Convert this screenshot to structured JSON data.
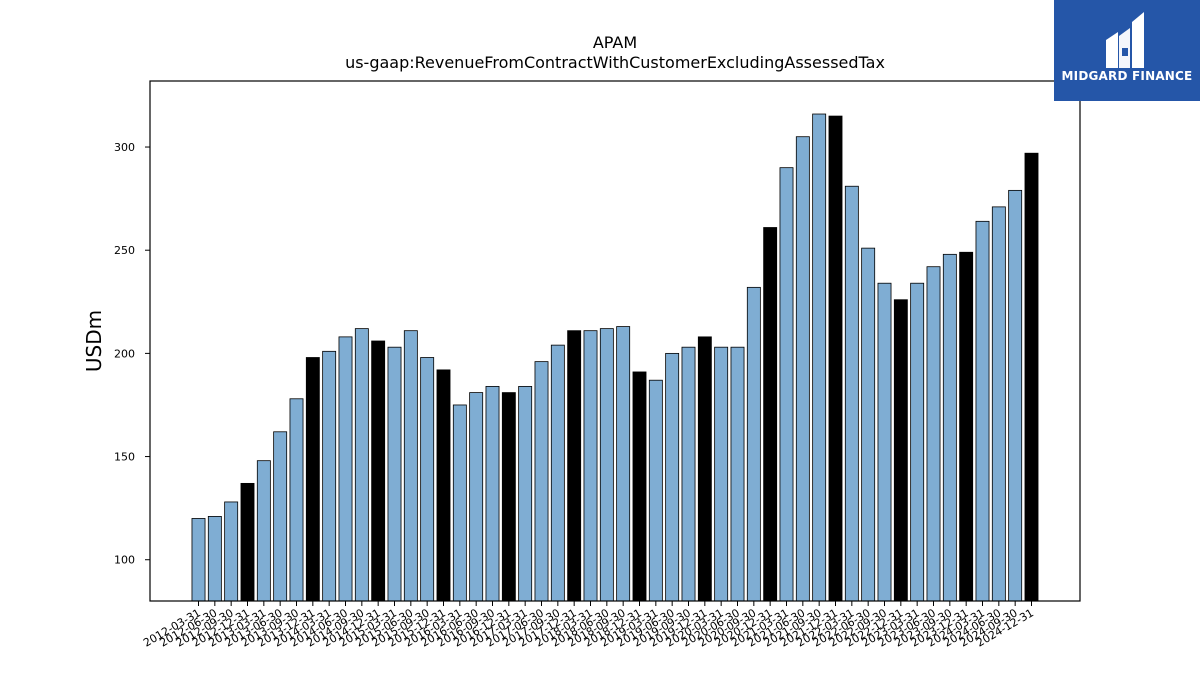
{
  "chart_data": {
    "type": "bar",
    "title": "APAM",
    "subtitle": "us-gaap:RevenueFromContractWithCustomerExcludingAssessedTax",
    "ylabel": "USDm",
    "xlabel": "",
    "ylim": [
      80,
      332
    ],
    "yticks": [
      100,
      150,
      200,
      250,
      300
    ],
    "grid": false,
    "categories": [
      "2012-03-31",
      "2012-06-30",
      "2012-09-30",
      "2012-12-31",
      "2013-03-31",
      "2013-06-30",
      "2013-09-30",
      "2013-12-31",
      "2014-03-31",
      "2014-06-30",
      "2014-09-30",
      "2014-12-31",
      "2015-03-31",
      "2015-06-30",
      "2015-09-30",
      "2015-12-31",
      "2016-03-31",
      "2016-06-30",
      "2016-09-30",
      "2016-12-31",
      "2017-03-31",
      "2017-06-30",
      "2017-09-30",
      "2017-12-31",
      "2018-03-31",
      "2018-06-30",
      "2018-09-30",
      "2018-12-31",
      "2019-03-31",
      "2019-06-30",
      "2019-09-30",
      "2019-12-31",
      "2020-03-31",
      "2020-06-30",
      "2020-09-30",
      "2020-12-31",
      "2021-03-31",
      "2021-06-30",
      "2021-09-30",
      "2021-12-31",
      "2022-03-31",
      "2022-06-30",
      "2022-09-30",
      "2022-12-31",
      "2023-03-31",
      "2023-06-30",
      "2023-09-30",
      "2023-12-31",
      "2024-03-31",
      "2024-06-30",
      "2024-09-30",
      "2024-12-31"
    ],
    "values": [
      120,
      121,
      128,
      137,
      148,
      162,
      178,
      198,
      201,
      208,
      212,
      206,
      203,
      211,
      198,
      192,
      175,
      181,
      184,
      181,
      184,
      196,
      204,
      211,
      211,
      212,
      213,
      191,
      187,
      200,
      203,
      208,
      203,
      203,
      232,
      261,
      290,
      305,
      316,
      315,
      281,
      251,
      234,
      226,
      234,
      242,
      248,
      249,
      264,
      271,
      279,
      297
    ],
    "colors": {
      "quarter": "#7fadd3",
      "year_end": "#000000",
      "edge": "#000000"
    }
  },
  "logo": {
    "text": "MIDGARD FINANCE",
    "background": "#2556a8"
  }
}
